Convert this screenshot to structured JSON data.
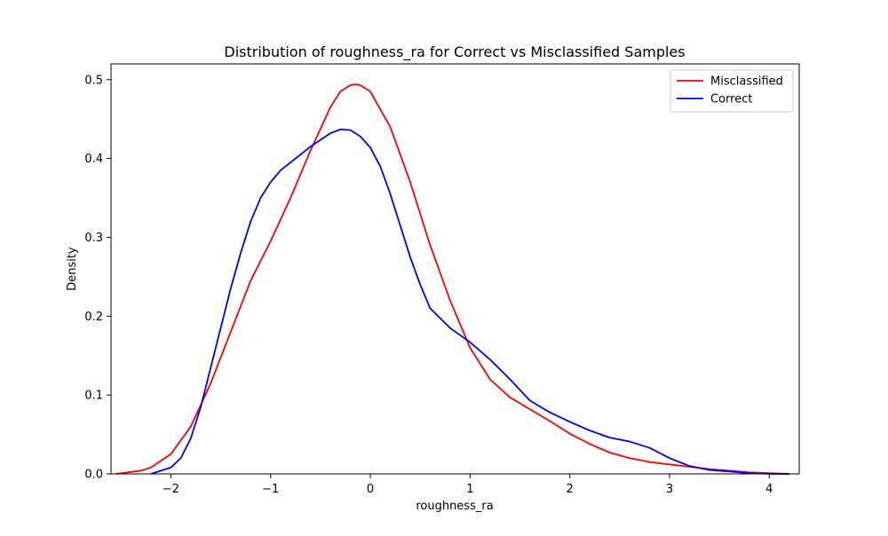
{
  "chart_data": {
    "type": "line",
    "title": "Distribution of roughness_ra for Correct vs Misclassified Samples",
    "xlabel": "roughness_ra",
    "ylabel": "Density",
    "xlim": [
      -2.6,
      4.3
    ],
    "ylim": [
      0,
      0.52
    ],
    "x_ticks": [
      -2,
      -1,
      0,
      1,
      2,
      3,
      4
    ],
    "x_tick_labels": [
      "−2",
      "−1",
      "0",
      "1",
      "2",
      "3",
      "4"
    ],
    "y_ticks": [
      0.0,
      0.1,
      0.2,
      0.3,
      0.4,
      0.5
    ],
    "y_tick_labels": [
      "0.0",
      "0.1",
      "0.2",
      "0.3",
      "0.4",
      "0.5"
    ],
    "grid": false,
    "legend_position": "top-right",
    "series": [
      {
        "name": "Misclassified",
        "color": "#ff0000",
        "x": [
          -2.55,
          -2.3,
          -2.2,
          -2.0,
          -1.8,
          -1.6,
          -1.4,
          -1.2,
          -1.0,
          -0.8,
          -0.6,
          -0.4,
          -0.3,
          -0.2,
          -0.15,
          -0.1,
          0.0,
          0.2,
          0.4,
          0.6,
          0.8,
          1.0,
          1.2,
          1.4,
          1.6,
          1.8,
          2.0,
          2.2,
          2.4,
          2.6,
          2.8,
          3.0,
          3.2,
          3.4,
          3.6,
          3.8,
          4.0,
          4.2
        ],
        "y": [
          0.0,
          0.004,
          0.008,
          0.025,
          0.06,
          0.115,
          0.18,
          0.245,
          0.295,
          0.35,
          0.41,
          0.465,
          0.485,
          0.493,
          0.494,
          0.493,
          0.485,
          0.44,
          0.37,
          0.29,
          0.22,
          0.16,
          0.12,
          0.097,
          0.082,
          0.067,
          0.051,
          0.038,
          0.027,
          0.02,
          0.015,
          0.012,
          0.009,
          0.006,
          0.004,
          0.002,
          0.001,
          0.0
        ]
      },
      {
        "name": "Correct",
        "color": "#0000ff",
        "x": [
          -2.2,
          -2.0,
          -1.9,
          -1.8,
          -1.7,
          -1.6,
          -1.5,
          -1.4,
          -1.3,
          -1.2,
          -1.1,
          -1.0,
          -0.9,
          -0.8,
          -0.6,
          -0.4,
          -0.3,
          -0.2,
          -0.1,
          0.0,
          0.1,
          0.2,
          0.3,
          0.4,
          0.5,
          0.6,
          0.8,
          1.0,
          1.2,
          1.4,
          1.6,
          1.8,
          2.0,
          2.2,
          2.4,
          2.6,
          2.8,
          3.0,
          3.2,
          3.4,
          3.6,
          3.8,
          4.0,
          4.2
        ],
        "y": [
          0.0,
          0.008,
          0.02,
          0.045,
          0.085,
          0.135,
          0.185,
          0.235,
          0.28,
          0.32,
          0.35,
          0.37,
          0.385,
          0.395,
          0.415,
          0.432,
          0.437,
          0.436,
          0.428,
          0.414,
          0.39,
          0.355,
          0.315,
          0.275,
          0.24,
          0.21,
          0.185,
          0.167,
          0.145,
          0.12,
          0.093,
          0.078,
          0.066,
          0.055,
          0.046,
          0.041,
          0.033,
          0.02,
          0.01,
          0.005,
          0.003,
          0.001,
          0.0,
          0.0
        ]
      }
    ]
  }
}
